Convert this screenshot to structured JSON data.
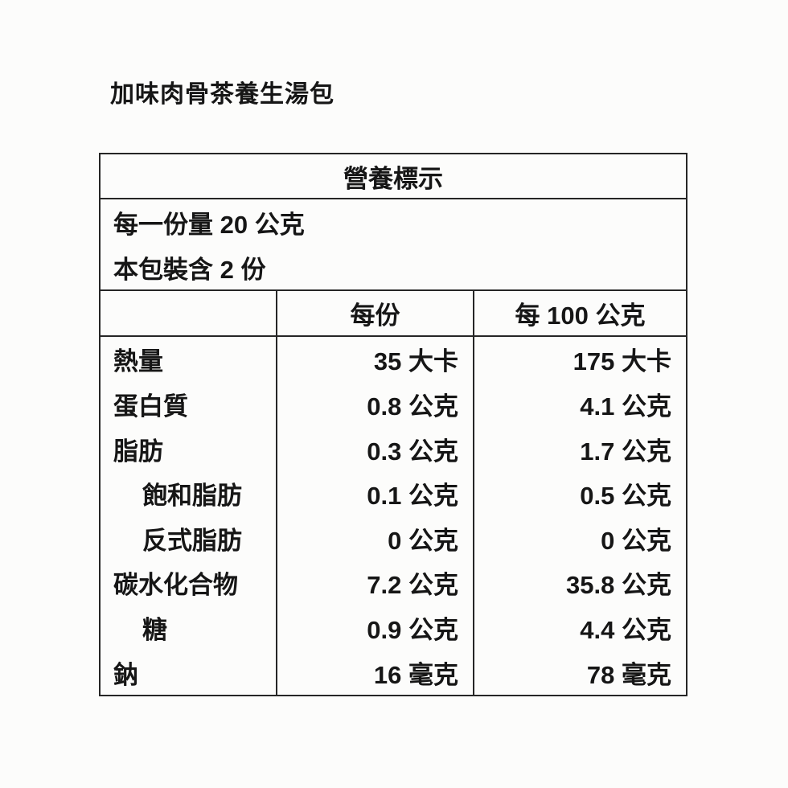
{
  "page": {
    "title": "加味肉骨茶養生湯包"
  },
  "table": {
    "header": "營養標示",
    "serving_info": {
      "serving_size": "每一份量 20 公克",
      "servings_per_package": "本包裝含 2 份"
    },
    "columns": {
      "nutrient": "",
      "per_serving": "每份",
      "per_100g": "每 100 公克"
    },
    "rows": [
      {
        "label": "熱量",
        "per_serving": "35 大卡",
        "per_100g": "175 大卡"
      },
      {
        "label": "蛋白質",
        "per_serving": "0.8 公克",
        "per_100g": "4.1 公克"
      },
      {
        "label": "脂肪",
        "per_serving": "0.3 公克",
        "per_100g": "1.7 公克"
      },
      {
        "label": "飽和脂肪",
        "per_serving": "0.1 公克",
        "per_100g": "0.5 公克",
        "indent": true
      },
      {
        "label": "反式脂肪",
        "per_serving": "0 公克",
        "per_100g": "0 公克",
        "indent": true
      },
      {
        "label": "碳水化合物",
        "per_serving": "7.2 公克",
        "per_100g": "35.8 公克"
      },
      {
        "label": "糖",
        "per_serving": "0.9 公克",
        "per_100g": "4.4 公克",
        "indent": true
      },
      {
        "label": "鈉",
        "per_serving": "16 毫克",
        "per_100g": "78 毫克"
      }
    ]
  },
  "colors": {
    "background": "#fcfcfb",
    "text": "#161616",
    "border": "#262626"
  }
}
